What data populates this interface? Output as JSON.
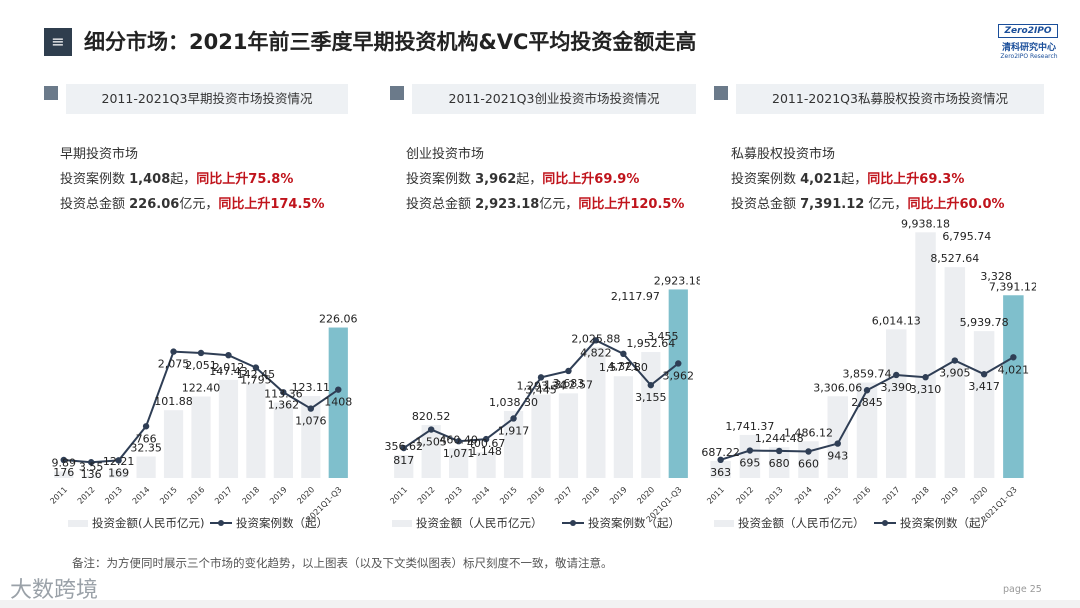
{
  "header": {
    "menu_icon": "≡",
    "title": "细分市场：2021年前三季度早期投资机构&VC平均投资金额走高",
    "logo_box": "Zero2IPO",
    "logo_cn": "清科研究中心",
    "logo_en": "Zero2IPO Research"
  },
  "panels": [
    {
      "heading": "2011-2021Q3早期投资市场投资情况",
      "stats_title": "早期投资市场",
      "line1_prefix": "投资案例数 ",
      "line1_value": "1,408",
      "line1_unit": "起，",
      "line1_growth": "同比上升75.8%",
      "line2_prefix": "投资总金额 ",
      "line2_value": "226.06",
      "line2_unit": "亿元，",
      "line2_growth": "同比上升174.5%"
    },
    {
      "heading": "2011-2021Q3创业投资市场投资情况",
      "stats_title": "创业投资市场",
      "line1_prefix": "投资案例数 ",
      "line1_value": "3,962",
      "line1_unit": "起，",
      "line1_growth": "同比上升69.9%",
      "line2_prefix": "投资总金额 ",
      "line2_value": "2,923.18",
      "line2_unit": "亿元，",
      "line2_growth": "同比上升120.5%"
    },
    {
      "heading": "2011-2021Q3私募股权投资市场投资情况",
      "stats_title": "私募股权投资市场",
      "line1_prefix": "投资案例数 ",
      "line1_value": "4,021",
      "line1_unit": "起，",
      "line1_growth": "同比上升69.3%",
      "line2_prefix": "投资总金额 ",
      "line2_value": "7,391.12",
      "line2_unit": " 亿元，",
      "line2_growth": "同比上升60.0%"
    }
  ],
  "chart_data": [
    {
      "type": "bar+line",
      "categories": [
        "2011",
        "2012",
        "2013",
        "2014",
        "2015",
        "2016",
        "2017",
        "2018",
        "2019",
        "2020",
        "2021Q1-Q3"
      ],
      "series": [
        {
          "name": "投资金额(人民币亿元)",
          "kind": "bar",
          "values": [
            9.89,
            3.55,
            12.21,
            32.35,
            101.88,
            122.4,
            147.43,
            142.45,
            113.36,
            123.11,
            226.06
          ],
          "labels": [
            "9.89",
            "3.55",
            "12.21",
            "32.35",
            "101.88",
            "122.40",
            "147.43",
            "142.45",
            "113.36",
            "123.11",
            "226.06"
          ]
        },
        {
          "name": "投资案例数（起）",
          "kind": "line",
          "values": [
            176,
            136,
            169,
            766,
            2075,
            2051,
            2012,
            1795,
            1362,
            1076,
            1408
          ],
          "labels": [
            "176",
            "136",
            "169",
            "766",
            "2,075",
            "2,051",
            "2,012",
            "1,795",
            "1,362",
            "1,076",
            "1408"
          ]
        }
      ],
      "legend_bar": "投资金额(人民币亿元)",
      "legend_line": "投资案例数（起）"
    },
    {
      "type": "bar+line",
      "categories": [
        "2011",
        "2012",
        "2013",
        "2014",
        "2015",
        "2016",
        "2017",
        "2018",
        "2019",
        "2020",
        "2021Q1-Q3"
      ],
      "series": [
        {
          "name": "投资金额（人民币亿元）",
          "kind": "bar",
          "values": [
            356.62,
            820.52,
            460.4,
            400.67,
            1038.3,
            1293.34,
            1312.57,
            2025.88,
            1577.8,
            1952.64,
            2923.18
          ],
          "labels": [
            "356.62",
            "820.52",
            "460.40",
            "400.67",
            "1,038.30",
            "1,293.34",
            "1,312.57",
            "2,025.88",
            "1,577.80",
            "1,952.64",
            "2,923.18"
          ]
        },
        {
          "name": "投资案例数（起）",
          "kind": "line",
          "values": [
            817,
            1505,
            1071,
            1148,
            1917,
            3445,
            3683,
            4822,
            4321,
            3155,
            3962
          ],
          "labels": [
            "817",
            "1,505",
            "1,071",
            "1,148",
            "1,917",
            "3,445",
            "3,683",
            "4,822",
            "4,321",
            "3,155",
            "3,962"
          ]
        }
      ],
      "extra_labels": [
        "2,117.97",
        "3,455"
      ],
      "legend_bar": "投资金额（人民币亿元）",
      "legend_line": "投资案例数（起）"
    },
    {
      "type": "bar+line",
      "categories": [
        "2011",
        "2012",
        "2013",
        "2014",
        "2015",
        "2016",
        "2017",
        "2018",
        "2019",
        "2020",
        "2021Q1-Q3"
      ],
      "series": [
        {
          "name": "投资金额（人民币亿元）",
          "kind": "bar",
          "values": [
            687.22,
            1741.37,
            1244.48,
            1486.12,
            3306.06,
            3859.74,
            6014.13,
            9938.18,
            8527.64,
            5939.78,
            7391.12
          ],
          "labels": [
            "687.22",
            "1,741.37",
            "1,244.48",
            "1,486.12",
            "3,306.06",
            "3,859.74",
            "6,014.13",
            "9,938.18",
            "8,527.64",
            "5,939.78",
            "7,391.12"
          ]
        },
        {
          "name": "投资案例数（起）",
          "kind": "line",
          "values": [
            363,
            695,
            680,
            660,
            943,
            2845,
            3390,
            3310,
            3905,
            3417,
            4021
          ],
          "labels": [
            "363",
            "695",
            "680",
            "660",
            "943",
            "2,845",
            "3,390",
            "3,310",
            "3,905",
            "3,417",
            "4,021"
          ]
        }
      ],
      "extra_labels": [
        "6,795.74",
        "3,328"
      ],
      "legend_bar": "投资金额（人民币亿元）",
      "legend_line": "投资案例数（起）"
    }
  ],
  "colors": {
    "bar": "#eceef1",
    "bar_highlight": "#7fbfcc",
    "line": "#2f3e55",
    "accent_red": "#c0141c"
  },
  "footer": {
    "note": "备注：为方便同时展示三个市场的变化趋势，以上图表（以及下文类似图表）标尺刻度不一致，敬请注意。",
    "watermark": "大数跨境",
    "page": "page   25"
  }
}
